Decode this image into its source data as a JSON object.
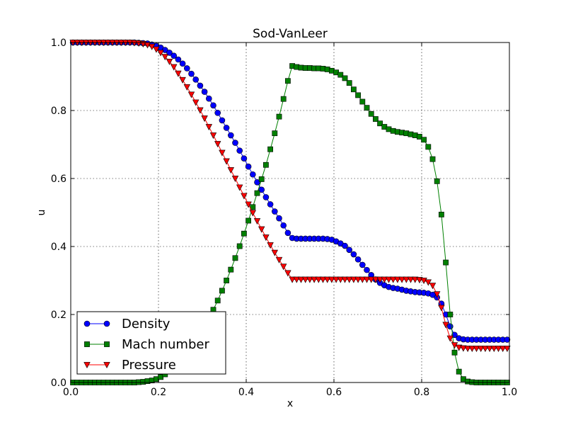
{
  "chart_data": {
    "type": "line",
    "title": "Sod-VanLeer",
    "xlabel": "x",
    "ylabel": "u",
    "xlim": [
      0.0,
      1.0
    ],
    "ylim": [
      0.0,
      1.0
    ],
    "grid": true,
    "legend_position": "lower-left",
    "x_ticks": [
      "0.0",
      "0.2",
      "0.4",
      "0.6",
      "0.8",
      "1.0"
    ],
    "y_ticks": [
      "0.0",
      "0.2",
      "0.4",
      "0.6",
      "0.8",
      "1.0"
    ],
    "series": [
      {
        "name": "Density",
        "color": "#0000ff",
        "marker": "circle",
        "x": [
          0.005,
          0.015,
          0.025,
          0.035,
          0.045,
          0.055,
          0.065,
          0.075,
          0.085,
          0.095,
          0.105,
          0.115,
          0.125,
          0.135,
          0.145,
          0.155,
          0.165,
          0.175,
          0.185,
          0.195,
          0.205,
          0.215,
          0.225,
          0.235,
          0.245,
          0.255,
          0.265,
          0.275,
          0.285,
          0.295,
          0.305,
          0.315,
          0.325,
          0.335,
          0.345,
          0.355,
          0.365,
          0.375,
          0.385,
          0.395,
          0.405,
          0.415,
          0.425,
          0.435,
          0.445,
          0.455,
          0.465,
          0.475,
          0.485,
          0.495,
          0.505,
          0.515,
          0.525,
          0.535,
          0.545,
          0.555,
          0.565,
          0.575,
          0.585,
          0.595,
          0.605,
          0.615,
          0.625,
          0.635,
          0.645,
          0.655,
          0.665,
          0.675,
          0.685,
          0.695,
          0.705,
          0.715,
          0.725,
          0.735,
          0.745,
          0.755,
          0.765,
          0.775,
          0.785,
          0.795,
          0.805,
          0.815,
          0.825,
          0.835,
          0.845,
          0.855,
          0.865,
          0.875,
          0.885,
          0.895,
          0.905,
          0.915,
          0.925,
          0.935,
          0.945,
          0.955,
          0.965,
          0.975,
          0.985,
          0.995
        ],
        "values": [
          1.0,
          1.0,
          1.0,
          1.0,
          1.0,
          1.0,
          1.0,
          1.0,
          1.0,
          1.0,
          1.0,
          1.0,
          1.0,
          1.0,
          1.0,
          0.999,
          0.998,
          0.997,
          0.994,
          0.99,
          0.985,
          0.978,
          0.97,
          0.961,
          0.95,
          0.938,
          0.924,
          0.908,
          0.891,
          0.873,
          0.855,
          0.835,
          0.815,
          0.793,
          0.771,
          0.749,
          0.727,
          0.705,
          0.682,
          0.659,
          0.635,
          0.612,
          0.589,
          0.567,
          0.545,
          0.524,
          0.503,
          0.483,
          0.462,
          0.44,
          0.425,
          0.423,
          0.423,
          0.423,
          0.423,
          0.423,
          0.423,
          0.423,
          0.422,
          0.42,
          0.415,
          0.409,
          0.402,
          0.39,
          0.377,
          0.362,
          0.346,
          0.331,
          0.316,
          0.303,
          0.293,
          0.286,
          0.281,
          0.278,
          0.276,
          0.273,
          0.27,
          0.268,
          0.266,
          0.265,
          0.264,
          0.262,
          0.258,
          0.25,
          0.232,
          0.2,
          0.165,
          0.14,
          0.13,
          0.127,
          0.126,
          0.126,
          0.126,
          0.126,
          0.126,
          0.126,
          0.126,
          0.126,
          0.126,
          0.126
        ]
      },
      {
        "name": "Mach number",
        "color": "#008000",
        "marker": "square",
        "x": [
          0.005,
          0.015,
          0.025,
          0.035,
          0.045,
          0.055,
          0.065,
          0.075,
          0.085,
          0.095,
          0.105,
          0.115,
          0.125,
          0.135,
          0.145,
          0.155,
          0.165,
          0.175,
          0.185,
          0.195,
          0.205,
          0.215,
          0.225,
          0.235,
          0.245,
          0.255,
          0.265,
          0.275,
          0.285,
          0.295,
          0.305,
          0.315,
          0.325,
          0.335,
          0.345,
          0.355,
          0.365,
          0.375,
          0.385,
          0.395,
          0.405,
          0.415,
          0.425,
          0.435,
          0.445,
          0.455,
          0.465,
          0.475,
          0.485,
          0.495,
          0.505,
          0.515,
          0.525,
          0.535,
          0.545,
          0.555,
          0.565,
          0.575,
          0.585,
          0.595,
          0.605,
          0.615,
          0.625,
          0.635,
          0.645,
          0.655,
          0.665,
          0.675,
          0.685,
          0.695,
          0.705,
          0.715,
          0.725,
          0.735,
          0.745,
          0.755,
          0.765,
          0.775,
          0.785,
          0.795,
          0.805,
          0.815,
          0.825,
          0.835,
          0.845,
          0.855,
          0.865,
          0.875,
          0.885,
          0.895,
          0.905,
          0.915,
          0.925,
          0.935,
          0.945,
          0.955,
          0.965,
          0.975,
          0.985,
          0.995
        ],
        "values": [
          0.0,
          0.0,
          0.0,
          0.0,
          0.0,
          0.0,
          0.0,
          0.0,
          0.0,
          0.0,
          0.0,
          0.0,
          0.0,
          0.0,
          0.0,
          0.001,
          0.002,
          0.004,
          0.006,
          0.01,
          0.016,
          0.024,
          0.034,
          0.045,
          0.058,
          0.073,
          0.089,
          0.106,
          0.124,
          0.144,
          0.166,
          0.189,
          0.214,
          0.241,
          0.27,
          0.3,
          0.332,
          0.366,
          0.401,
          0.438,
          0.476,
          0.516,
          0.557,
          0.598,
          0.64,
          0.686,
          0.733,
          0.782,
          0.834,
          0.887,
          0.931,
          0.928,
          0.926,
          0.925,
          0.925,
          0.924,
          0.924,
          0.923,
          0.921,
          0.917,
          0.912,
          0.905,
          0.895,
          0.881,
          0.862,
          0.845,
          0.826,
          0.808,
          0.79,
          0.775,
          0.762,
          0.752,
          0.745,
          0.74,
          0.737,
          0.735,
          0.733,
          0.73,
          0.727,
          0.723,
          0.714,
          0.693,
          0.657,
          0.592,
          0.494,
          0.353,
          0.2,
          0.088,
          0.032,
          0.01,
          0.003,
          0.001,
          0.0,
          0.0,
          0.0,
          0.0,
          0.0,
          0.0,
          0.0,
          0.0
        ]
      },
      {
        "name": "Pressure",
        "color": "#ff0000",
        "marker": "triangle-down",
        "x": [
          0.005,
          0.015,
          0.025,
          0.035,
          0.045,
          0.055,
          0.065,
          0.075,
          0.085,
          0.095,
          0.105,
          0.115,
          0.125,
          0.135,
          0.145,
          0.155,
          0.165,
          0.175,
          0.185,
          0.195,
          0.205,
          0.215,
          0.225,
          0.235,
          0.245,
          0.255,
          0.265,
          0.275,
          0.285,
          0.295,
          0.305,
          0.315,
          0.325,
          0.335,
          0.345,
          0.355,
          0.365,
          0.375,
          0.385,
          0.395,
          0.405,
          0.415,
          0.425,
          0.435,
          0.445,
          0.455,
          0.465,
          0.475,
          0.485,
          0.495,
          0.505,
          0.515,
          0.525,
          0.535,
          0.545,
          0.555,
          0.565,
          0.575,
          0.585,
          0.595,
          0.605,
          0.615,
          0.625,
          0.635,
          0.645,
          0.655,
          0.665,
          0.675,
          0.685,
          0.695,
          0.705,
          0.715,
          0.725,
          0.735,
          0.745,
          0.755,
          0.765,
          0.775,
          0.785,
          0.795,
          0.805,
          0.815,
          0.825,
          0.835,
          0.845,
          0.855,
          0.865,
          0.875,
          0.885,
          0.895,
          0.905,
          0.915,
          0.925,
          0.935,
          0.945,
          0.955,
          0.965,
          0.975,
          0.985,
          0.995
        ],
        "values": [
          1.0,
          1.0,
          1.0,
          1.0,
          1.0,
          1.0,
          1.0,
          1.0,
          1.0,
          1.0,
          1.0,
          1.0,
          1.0,
          1.0,
          0.999,
          0.998,
          0.996,
          0.993,
          0.988,
          0.98,
          0.97,
          0.958,
          0.944,
          0.928,
          0.909,
          0.89,
          0.869,
          0.847,
          0.824,
          0.801,
          0.777,
          0.752,
          0.727,
          0.702,
          0.676,
          0.651,
          0.625,
          0.6,
          0.574,
          0.549,
          0.524,
          0.499,
          0.475,
          0.451,
          0.427,
          0.404,
          0.382,
          0.361,
          0.341,
          0.322,
          0.303,
          0.303,
          0.303,
          0.303,
          0.303,
          0.303,
          0.303,
          0.303,
          0.303,
          0.303,
          0.303,
          0.303,
          0.303,
          0.303,
          0.303,
          0.303,
          0.303,
          0.303,
          0.303,
          0.303,
          0.303,
          0.303,
          0.303,
          0.303,
          0.303,
          0.303,
          0.303,
          0.303,
          0.303,
          0.302,
          0.3,
          0.295,
          0.285,
          0.26,
          0.22,
          0.17,
          0.13,
          0.11,
          0.103,
          0.101,
          0.1,
          0.1,
          0.1,
          0.1,
          0.1,
          0.1,
          0.1,
          0.1,
          0.1,
          0.1
        ]
      }
    ]
  }
}
